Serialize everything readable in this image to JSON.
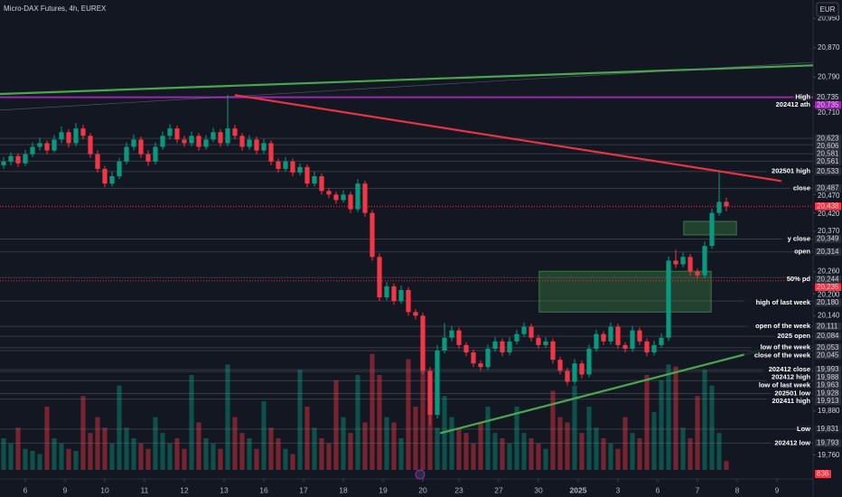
{
  "chart_data": {
    "type": "candlestick",
    "title": "Micro-DAX Futures, 4h, EUREX",
    "currency": "EUR",
    "up_color": "#089981",
    "down_color": "#f23645",
    "ylim": [
      19720,
      21000
    ],
    "xlim": [
      -0.5,
      112
    ],
    "vlim": [
      0,
      12000
    ],
    "yticks": [
      {
        "value": 20950,
        "label": "20,950"
      },
      {
        "value": 20870,
        "label": "20,870"
      },
      {
        "value": 20790,
        "label": "20,790"
      },
      {
        "value": 20710,
        "label": "20,710"
      },
      {
        "value": 20470,
        "label": "20,470"
      },
      {
        "value": 20420,
        "label": "20,420"
      },
      {
        "value": 20370,
        "label": "20,370"
      },
      {
        "value": 20260,
        "label": "20,260"
      },
      {
        "value": 20200,
        "label": "20,200"
      },
      {
        "value": 20140,
        "label": "20,140"
      },
      {
        "value": 19880,
        "label": "19,880"
      },
      {
        "value": 19760,
        "label": "19,760"
      }
    ],
    "xticks": [
      {
        "value": 3,
        "label": "6"
      },
      {
        "value": 8.5,
        "label": "9"
      },
      {
        "value": 14,
        "label": "10"
      },
      {
        "value": 19.5,
        "label": "11"
      },
      {
        "value": 25,
        "label": "12"
      },
      {
        "value": 30.5,
        "label": "13"
      },
      {
        "value": 36,
        "label": "16"
      },
      {
        "value": 41.5,
        "label": "17"
      },
      {
        "value": 47,
        "label": "18"
      },
      {
        "value": 52.5,
        "label": "19"
      },
      {
        "value": 58,
        "label": "20"
      },
      {
        "value": 63,
        "label": "23"
      },
      {
        "value": 68.5,
        "label": "27"
      },
      {
        "value": 74,
        "label": "30"
      },
      {
        "value": 79.5,
        "label": "2025"
      },
      {
        "value": 85,
        "label": "3"
      },
      {
        "value": 90.5,
        "label": "6"
      },
      {
        "value": 96,
        "label": "7"
      },
      {
        "value": 101.5,
        "label": "8"
      },
      {
        "value": 107,
        "label": "9"
      }
    ],
    "ohlc": [
      [
        20550,
        20572,
        20540,
        20560
      ],
      [
        20560,
        20585,
        20550,
        20575
      ],
      [
        20575,
        20582,
        20545,
        20555
      ],
      [
        20555,
        20592,
        20548,
        20580
      ],
      [
        20580,
        20612,
        20572,
        20600
      ],
      [
        20600,
        20625,
        20590,
        20610
      ],
      [
        20610,
        20618,
        20580,
        20590
      ],
      [
        20590,
        20632,
        20585,
        20620
      ],
      [
        20620,
        20655,
        20610,
        20640
      ],
      [
        20640,
        20648,
        20598,
        20610
      ],
      [
        20610,
        20665,
        20602,
        20650
      ],
      [
        20650,
        20660,
        20620,
        20630
      ],
      [
        20630,
        20638,
        20570,
        20580
      ],
      [
        20580,
        20590,
        20530,
        20540
      ],
      [
        20540,
        20548,
        20490,
        20500
      ],
      [
        20500,
        20532,
        20492,
        20520
      ],
      [
        20520,
        20570,
        20512,
        20560
      ],
      [
        20560,
        20612,
        20552,
        20600
      ],
      [
        20600,
        20634,
        20590,
        20620
      ],
      [
        20620,
        20628,
        20570,
        20580
      ],
      [
        20580,
        20590,
        20548,
        20560
      ],
      [
        20560,
        20612,
        20552,
        20600
      ],
      [
        20600,
        20642,
        20592,
        20630
      ],
      [
        20630,
        20662,
        20620,
        20650
      ],
      [
        20650,
        20658,
        20610,
        20620
      ],
      [
        20620,
        20630,
        20600,
        20610
      ],
      [
        20610,
        20642,
        20602,
        20630
      ],
      [
        20630,
        20638,
        20590,
        20600
      ],
      [
        20600,
        20632,
        20592,
        20620
      ],
      [
        20620,
        20652,
        20612,
        20640
      ],
      [
        20640,
        20648,
        20600,
        20610
      ],
      [
        20610,
        20742,
        20602,
        20650
      ],
      [
        20650,
        20660,
        20620,
        20630
      ],
      [
        20630,
        20638,
        20590,
        20600
      ],
      [
        20600,
        20632,
        20592,
        20620
      ],
      [
        20620,
        20628,
        20580,
        20590
      ],
      [
        20590,
        20622,
        20582,
        20610
      ],
      [
        20610,
        20618,
        20550,
        20560
      ],
      [
        20560,
        20568,
        20530,
        20540
      ],
      [
        20540,
        20572,
        20532,
        20560
      ],
      [
        20560,
        20568,
        20520,
        20530
      ],
      [
        20530,
        20555,
        20522,
        20545
      ],
      [
        20545,
        20552,
        20490,
        20500
      ],
      [
        20500,
        20532,
        20492,
        20520
      ],
      [
        20520,
        20528,
        20470,
        20480
      ],
      [
        20480,
        20488,
        20460,
        20470
      ],
      [
        20470,
        20478,
        20445,
        20455
      ],
      [
        20455,
        20482,
        20448,
        20470
      ],
      [
        20470,
        20478,
        20420,
        20430
      ],
      [
        20430,
        20512,
        20422,
        20500
      ],
      [
        20500,
        20508,
        20410,
        20420
      ],
      [
        20420,
        20428,
        20290,
        20300
      ],
      [
        20300,
        20310,
        20180,
        20190
      ],
      [
        20190,
        20232,
        20182,
        20220
      ],
      [
        20220,
        20228,
        20170,
        20180
      ],
      [
        20180,
        20222,
        20172,
        20210
      ],
      [
        20210,
        20218,
        20140,
        20150
      ],
      [
        20150,
        20158,
        20130,
        20140
      ],
      [
        20140,
        20148,
        19980,
        19990
      ],
      [
        19990,
        20000,
        19842,
        19870
      ],
      [
        19870,
        20060,
        19860,
        20045
      ],
      [
        20045,
        20120,
        20038,
        20080
      ],
      [
        20080,
        20112,
        20070,
        20100
      ],
      [
        20100,
        20108,
        20050,
        20060
      ],
      [
        20060,
        20068,
        20030,
        20040
      ],
      [
        20040,
        20048,
        20000,
        20010
      ],
      [
        20010,
        20018,
        19990,
        20000
      ],
      [
        20000,
        20062,
        19992,
        20050
      ],
      [
        20050,
        20082,
        20042,
        20070
      ],
      [
        20070,
        20078,
        20030,
        20040
      ],
      [
        20040,
        20082,
        20032,
        20070
      ],
      [
        20070,
        20102,
        20062,
        20090
      ],
      [
        20090,
        20122,
        20082,
        20110
      ],
      [
        20110,
        20118,
        20070,
        20080
      ],
      [
        20080,
        20088,
        20050,
        20060
      ],
      [
        20060,
        20082,
        20052,
        20070
      ],
      [
        20070,
        20078,
        20010,
        20020
      ],
      [
        20020,
        20028,
        19980,
        19990
      ],
      [
        19990,
        19998,
        19950,
        19960
      ],
      [
        19960,
        20022,
        19952,
        20010
      ],
      [
        20010,
        20018,
        19970,
        19980
      ],
      [
        19980,
        20062,
        19972,
        20050
      ],
      [
        20050,
        20102,
        20042,
        20090
      ],
      [
        20090,
        20098,
        20060,
        20070
      ],
      [
        20070,
        20122,
        20062,
        20110
      ],
      [
        20110,
        20118,
        20050,
        20060
      ],
      [
        20060,
        20068,
        20040,
        20050
      ],
      [
        20050,
        20112,
        20042,
        20100
      ],
      [
        20100,
        20108,
        20060,
        20070
      ],
      [
        20070,
        20078,
        20030,
        20040
      ],
      [
        20040,
        20072,
        20032,
        20060
      ],
      [
        20060,
        20092,
        20052,
        20080
      ],
      [
        20080,
        20302,
        20072,
        20290
      ],
      [
        20290,
        20320,
        20270,
        20280
      ],
      [
        20280,
        20312,
        20272,
        20300
      ],
      [
        20300,
        20308,
        20250,
        20260
      ],
      [
        20260,
        20268,
        20240,
        20250
      ],
      [
        20250,
        20342,
        20242,
        20330
      ],
      [
        20330,
        20432,
        20322,
        20420
      ],
      [
        20420,
        20533,
        20412,
        20450
      ],
      [
        20450,
        20462,
        20425,
        20438
      ]
    ],
    "volume": [
      3000,
      2500,
      4000,
      2000,
      1800,
      1500,
      6000,
      3000,
      2500,
      2000,
      1800,
      7000,
      3500,
      5000,
      4000,
      2500,
      8000,
      4000,
      3000,
      2500,
      2000,
      5000,
      3500,
      2500,
      3000,
      2000,
      9000,
      4500,
      3000,
      2500,
      2000,
      10000,
      5000,
      3500,
      3000,
      2000,
      6500,
      4000,
      3000,
      2000,
      1500,
      9500,
      6000,
      4000,
      3000,
      2500,
      8500,
      5000,
      3500,
      9000,
      4500,
      11000,
      9000,
      5000,
      4500,
      3000,
      10500,
      6000,
      11500,
      8000,
      4000,
      7000,
      5000,
      4000,
      3500,
      2500,
      4500,
      6000,
      3500,
      3000,
      2500,
      6000,
      3500,
      3000,
      2500,
      2000,
      7500,
      5000,
      4500,
      8000,
      3500,
      6000,
      4000,
      3000,
      2500,
      2000,
      5000,
      3500,
      3000,
      9000,
      5500,
      8500,
      10000,
      9800,
      4000,
      3000,
      7000,
      9500,
      8000,
      3500,
      836
    ],
    "levels": [
      {
        "name": "High",
        "value": 20735,
        "label": "20,735",
        "color": "#1e222d"
      },
      {
        "name": "202412 ath",
        "value": 20735,
        "label": "20,735",
        "color": "#9c27b0"
      },
      {
        "value": 20623,
        "label": "20,623",
        "color": "#2a2e39"
      },
      {
        "value": 20606,
        "label": "20,606",
        "color": "#2a2e39"
      },
      {
        "value": 20581,
        "label": "20,581",
        "color": "#2a2e39"
      },
      {
        "value": 20561,
        "label": "20,561",
        "color": "#2a2e39"
      },
      {
        "name": "202501 high",
        "value": 20533,
        "label": "20,533",
        "color": "#2a2e39"
      },
      {
        "name": "close",
        "value": 20487,
        "label": "20,487",
        "color": "#2a2e39"
      },
      {
        "value": 20438,
        "label": "20,438",
        "color": "#f23645"
      },
      {
        "name": "y close",
        "value": 20349,
        "label": "20,349",
        "color": "#2a2e39"
      },
      {
        "name": "open",
        "value": 20314,
        "label": "20,314",
        "color": "#2a2e39"
      },
      {
        "name": "50% pd",
        "value": 20244,
        "label": "20,244",
        "color": "#2a2e39"
      },
      {
        "value": 20235,
        "label": "20,235",
        "color": "#f23645"
      },
      {
        "name": "high of last week",
        "value": 20180,
        "label": "20,180",
        "color": "#2a2e39"
      },
      {
        "name": "open of the week",
        "value": 20111,
        "label": "20,111",
        "color": "#2a2e39"
      },
      {
        "name": "2025 open",
        "value": 20084,
        "label": "20,084",
        "color": "#2a2e39"
      },
      {
        "name": "low of the week",
        "value": 20053,
        "label": "20,053",
        "color": "#2a2e39"
      },
      {
        "name": "close of the week",
        "value": 20045,
        "label": "20,045",
        "color": "#2a2e39"
      },
      {
        "name": "202412 close",
        "value": 19993,
        "label": "19,993",
        "color": "#2a2e39"
      },
      {
        "name": "202412 high",
        "value": 19988,
        "label": "19,988",
        "color": "#2a2e39"
      },
      {
        "name": "low of last week",
        "value": 19963,
        "label": "19,963",
        "color": "#2a2e39"
      },
      {
        "name": "202501 low",
        "value": 19928,
        "label": "19,928",
        "color": "#2a2e39"
      },
      {
        "name": "202411 high",
        "value": 19913,
        "label": "19,913",
        "color": "#2a2e39"
      },
      {
        "name": "Low",
        "value": 19831,
        "label": "19,831",
        "color": "#1e222d"
      },
      {
        "name": "202412 low",
        "value": 19793,
        "label": "19,793",
        "color": "#2a2e39"
      }
    ],
    "trendlines": [
      {
        "color": "#4caf50",
        "x": [
          -0.5,
          112
        ],
        "y": [
          20744,
          20822
        ]
      },
      {
        "color": "#787b86",
        "x": [
          -0.5,
          112
        ],
        "y": [
          20700,
          20830
        ]
      },
      {
        "color": "#f23645",
        "x": [
          32,
          107.6
        ],
        "y": [
          20741,
          20507
        ]
      },
      {
        "color": "#4caf50",
        "x": [
          60.4,
          106
        ],
        "y": [
          19820,
          20052
        ]
      }
    ],
    "zones": [
      {
        "color": "#4caf50",
        "x": [
          74.1,
          97.9
        ],
        "y": [
          20150,
          20261
        ]
      },
      {
        "color": "#4caf50",
        "x": [
          94.1,
          101.4
        ],
        "y": [
          20360,
          20397
        ]
      }
    ]
  }
}
